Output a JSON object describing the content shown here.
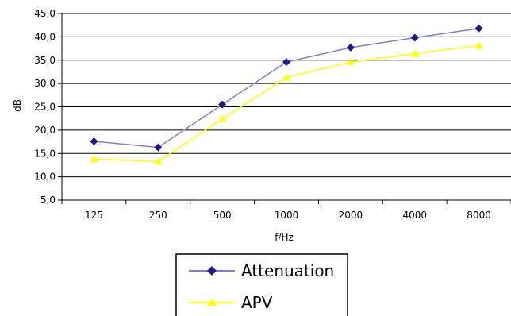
{
  "chart_data": {
    "type": "line",
    "categories": [
      "125",
      "250",
      "500",
      "1000",
      "2000",
      "4000",
      "8000"
    ],
    "ylabel": "dB",
    "xlabel": "f/Hz",
    "ylim": [
      5.0,
      45.0
    ],
    "yticks": [
      "5,0",
      "10,0",
      "15,0",
      "20,0",
      "25,0",
      "30,0",
      "35,0",
      "40,0",
      "45,0"
    ],
    "grid": "horizontal",
    "legend_position": "bottom-center",
    "series": [
      {
        "name": "Attenuation",
        "values": [
          17.6,
          16.3,
          25.5,
          34.6,
          37.7,
          39.8,
          41.8
        ],
        "color": "#1f1a8c",
        "line_color": "#8080c8",
        "marker": "diamond"
      },
      {
        "name": "APV",
        "values": [
          13.8,
          13.3,
          22.4,
          31.3,
          34.6,
          36.4,
          38.1
        ],
        "color": "#ffff00",
        "line_color": "#ffff00",
        "marker": "triangle"
      }
    ]
  }
}
